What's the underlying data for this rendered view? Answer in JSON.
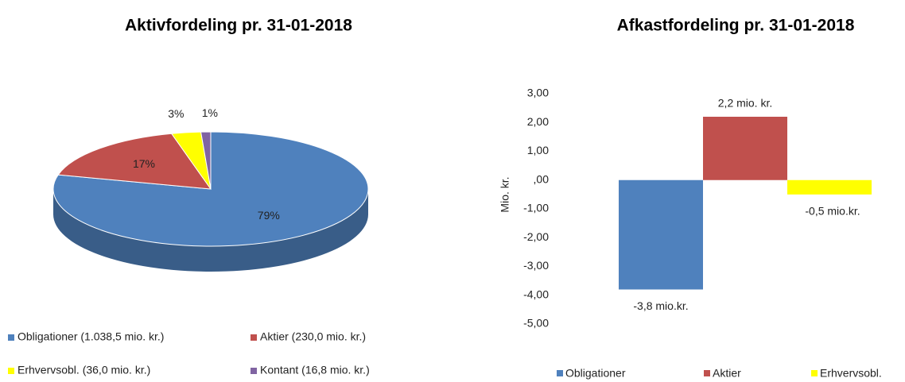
{
  "chart_data": [
    {
      "type": "pie",
      "title": "Aktivfordeling pr. 31-01-2018",
      "categories": [
        "Obligationer (1.038,5 mio. kr.)",
        "Aktier (230,0 mio. kr.)",
        "Erhvervsobl. (36,0 mio. kr.)",
        "Kontant (16,8 mio. kr.)"
      ],
      "values": [
        79,
        17,
        3,
        1
      ],
      "value_labels": [
        "79%",
        "17%",
        "3%",
        "1%"
      ],
      "colors": [
        "#4f81bd",
        "#c0504d",
        "#ffff00",
        "#8064a2"
      ]
    },
    {
      "type": "bar",
      "title": "Afkastfordeling pr. 31-01-2018",
      "ylabel": "Mio. kr.",
      "series": [
        {
          "name": "Obligationer",
          "color": "#4f81bd",
          "values": [
            -3.8
          ],
          "value_labels": [
            "-3,8 mio.kr."
          ]
        },
        {
          "name": "Aktier",
          "color": "#c0504d",
          "values": [
            2.2
          ],
          "value_labels": [
            "2,2 mio. kr."
          ]
        },
        {
          "name": "Erhvervsobl.",
          "color": "#ffff00",
          "values": [
            -0.5
          ],
          "value_labels": [
            "-0,5 mio.kr."
          ]
        }
      ],
      "ylim": [
        -5,
        3
      ],
      "yticks": [
        {
          "value": 3,
          "label": "3,00"
        },
        {
          "value": 2,
          "label": "2,00"
        },
        {
          "value": 1,
          "label": "1,00"
        },
        {
          "value": 0,
          "label": ",00"
        },
        {
          "value": -1,
          "label": "-1,00"
        },
        {
          "value": -2,
          "label": "-2,00"
        },
        {
          "value": -3,
          "label": "-3,00"
        },
        {
          "value": -4,
          "label": "-4,00"
        },
        {
          "value": -5,
          "label": "-5,00"
        }
      ]
    }
  ]
}
